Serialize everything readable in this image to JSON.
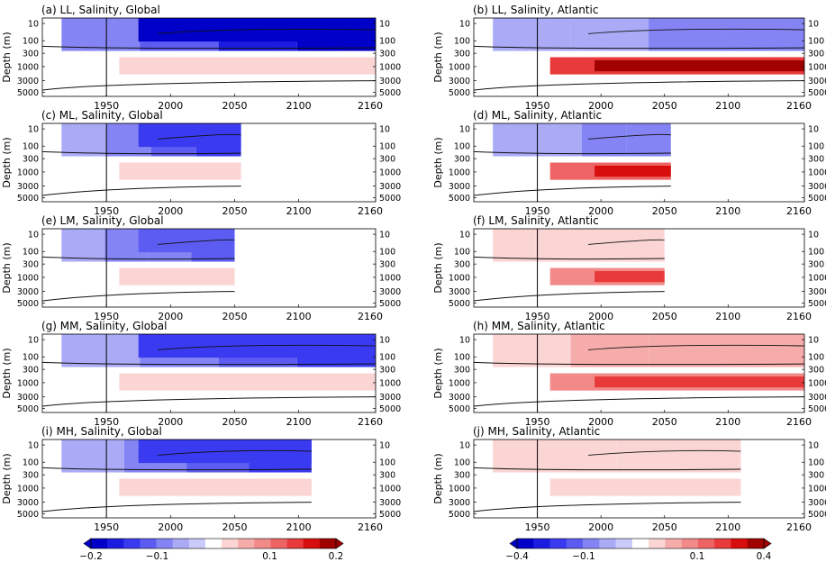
{
  "colors": {
    "neg": [
      "#0000c8",
      "#1c1ce0",
      "#3a3af0",
      "#5c5cf2",
      "#8484f4",
      "#aaaaf7",
      "#cacafb"
    ],
    "pos": [
      "#fbd4d4",
      "#f7acac",
      "#f28a8a",
      "#ee6464",
      "#e83a3a",
      "#d80e0e",
      "#a00000"
    ],
    "contour": "#111111",
    "frame": "#000000"
  },
  "colorbars": [
    {
      "labels": [
        "−0.2",
        "−0.1",
        "0.1",
        "0.2"
      ]
    },
    {
      "labels": [
        "−0.4",
        "−0.1",
        "0.1",
        "0.4"
      ]
    }
  ],
  "chart_data": [
    {
      "type": "heatmap",
      "title": "(a) LL, Salinity, Global",
      "variable": "Salinity",
      "region": "Global",
      "experiment": "LL",
      "ylabel": "Depth (m)",
      "yticks": [
        "10",
        "100",
        "300",
        "1000",
        "3000",
        "5000"
      ],
      "xticks": [
        "1950",
        "2000",
        "2050",
        "2100",
        "2160"
      ],
      "xlim": [
        1900,
        2160
      ],
      "x_end": 2160,
      "colorbar": 0,
      "shallow_sign": "neg",
      "shallow_level": 6,
      "deep_sign": "pos",
      "deep_level": 1
    },
    {
      "type": "heatmap",
      "title": "(b) LL, Salinity, Atlantic",
      "variable": "Salinity",
      "region": "Atlantic",
      "experiment": "LL",
      "ylabel": "Depth (m)",
      "yticks": [
        "10",
        "100",
        "300",
        "1000",
        "3000",
        "5000"
      ],
      "xticks": [
        "1950",
        "2000",
        "2050",
        "2100",
        "2160"
      ],
      "xlim": [
        1900,
        2160
      ],
      "x_end": 2160,
      "colorbar": 1,
      "shallow_sign": "neg",
      "shallow_level": 2,
      "deep_sign": "pos",
      "deep_level": 6
    },
    {
      "type": "heatmap",
      "title": "(c) ML, Salinity, Global",
      "variable": "Salinity",
      "region": "Global",
      "experiment": "ML",
      "ylabel": "Depth (m)",
      "yticks": [
        "10",
        "100",
        "300",
        "1000",
        "3000",
        "5000"
      ],
      "xticks": [
        "1950",
        "2000",
        "2050",
        "2100",
        "2160"
      ],
      "xlim": [
        1900,
        2160
      ],
      "x_end": 2055,
      "colorbar": 0,
      "shallow_sign": "neg",
      "shallow_level": 4,
      "deep_sign": "pos",
      "deep_level": 1
    },
    {
      "type": "heatmap",
      "title": "(d) ML, Salinity, Atlantic",
      "variable": "Salinity",
      "region": "Atlantic",
      "experiment": "ML",
      "ylabel": "Depth (m)",
      "yticks": [
        "10",
        "100",
        "300",
        "1000",
        "3000",
        "5000"
      ],
      "xticks": [
        "1950",
        "2000",
        "2050",
        "2100",
        "2160"
      ],
      "xlim": [
        1900,
        2160
      ],
      "x_end": 2055,
      "colorbar": 1,
      "shallow_sign": "neg",
      "shallow_level": 2,
      "deep_sign": "pos",
      "deep_level": 5
    },
    {
      "type": "heatmap",
      "title": "(e) LM, Salinity, Global",
      "variable": "Salinity",
      "region": "Global",
      "experiment": "LM",
      "ylabel": "Depth (m)",
      "yticks": [
        "10",
        "100",
        "300",
        "1000",
        "3000",
        "5000"
      ],
      "xticks": [
        "1950",
        "2000",
        "2050",
        "2100",
        "2160"
      ],
      "xlim": [
        1900,
        2160
      ],
      "x_end": 2050,
      "colorbar": 0,
      "shallow_sign": "neg",
      "shallow_level": 3,
      "deep_sign": "pos",
      "deep_level": 0
    },
    {
      "type": "heatmap",
      "title": "(f) LM, Salinity, Atlantic",
      "variable": "Salinity",
      "region": "Atlantic",
      "experiment": "LM",
      "ylabel": "Depth (m)",
      "yticks": [
        "10",
        "100",
        "300",
        "1000",
        "3000",
        "5000"
      ],
      "xticks": [
        "1950",
        "2000",
        "2050",
        "2100",
        "2160"
      ],
      "xlim": [
        1900,
        2160
      ],
      "x_end": 2050,
      "colorbar": 1,
      "shallow_sign": "pos",
      "shallow_level": 0,
      "deep_sign": "pos",
      "deep_level": 4
    },
    {
      "type": "heatmap",
      "title": "(g) MM, Salinity, Global",
      "variable": "Salinity",
      "region": "Global",
      "experiment": "MM",
      "ylabel": "Depth (m)",
      "yticks": [
        "10",
        "100",
        "300",
        "1000",
        "3000",
        "5000"
      ],
      "xticks": [
        "1950",
        "2000",
        "2050",
        "2100",
        "2160"
      ],
      "xlim": [
        1900,
        2160
      ],
      "x_end": 2160,
      "colorbar": 0,
      "shallow_sign": "neg",
      "shallow_level": 4,
      "deep_sign": "pos",
      "deep_level": 0
    },
    {
      "type": "heatmap",
      "title": "(h) MM, Salinity, Atlantic",
      "variable": "Salinity",
      "region": "Atlantic",
      "experiment": "MM",
      "ylabel": "Depth (m)",
      "yticks": [
        "10",
        "100",
        "300",
        "1000",
        "3000",
        "5000"
      ],
      "xticks": [
        "1950",
        "2000",
        "2050",
        "2100",
        "2160"
      ],
      "xlim": [
        1900,
        2160
      ],
      "x_end": 2160,
      "colorbar": 1,
      "shallow_sign": "pos",
      "shallow_level": 1,
      "deep_sign": "pos",
      "deep_level": 4
    },
    {
      "type": "heatmap",
      "title": "(i) MH, Salinity, Global",
      "variable": "Salinity",
      "region": "Global",
      "experiment": "MH",
      "ylabel": "Depth (m)",
      "yticks": [
        "10",
        "100",
        "300",
        "1000",
        "3000",
        "5000"
      ],
      "xticks": [
        "1950",
        "2000",
        "2050",
        "2100",
        "2160"
      ],
      "xlim": [
        1900,
        2160
      ],
      "x_end": 2110,
      "colorbar": 0,
      "shallow_sign": "neg",
      "shallow_level": 4,
      "deep_sign": "pos",
      "deep_level": 0
    },
    {
      "type": "heatmap",
      "title": "(j) MH, Salinity, Atlantic",
      "variable": "Salinity",
      "region": "Atlantic",
      "experiment": "MH",
      "ylabel": "Depth (m)",
      "yticks": [
        "10",
        "100",
        "300",
        "1000",
        "3000",
        "5000"
      ],
      "xticks": [
        "1950",
        "2000",
        "2050",
        "2100",
        "2160"
      ],
      "xlim": [
        1900,
        2160
      ],
      "x_end": 2110,
      "colorbar": 1,
      "shallow_sign": "pos",
      "shallow_level": 0,
      "deep_sign": "pos",
      "deep_level": 1
    }
  ]
}
